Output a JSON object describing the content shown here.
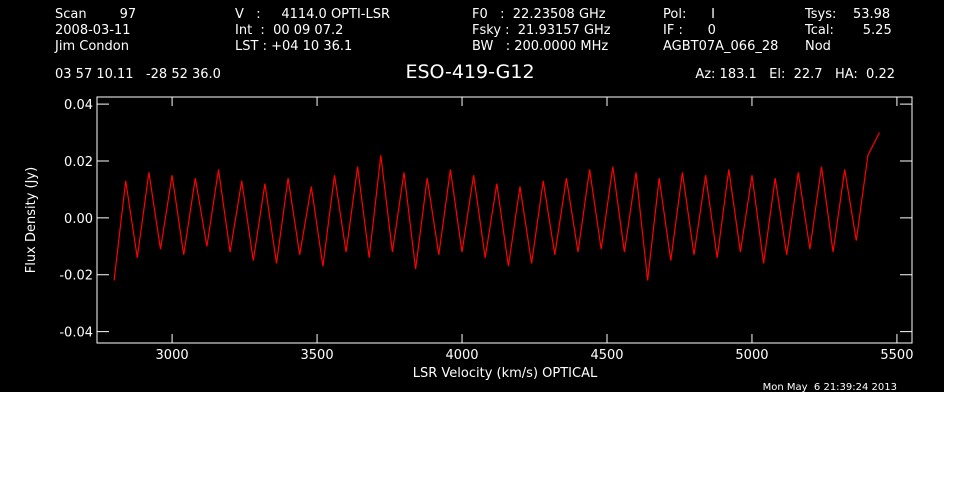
{
  "chart_data": {
    "type": "line",
    "title": "ESO-419-G12",
    "header": [
      [
        "Scan        97",
        "V   :     4114.0 OPTI-LSR",
        "F0   :  22.23508 GHz",
        "Pol:      I",
        "Tsys:    53.98"
      ],
      [
        "2008-03-11",
        "Int  :  00 09 07.2",
        "Fsky :  21.93157 GHz",
        "IF :      0",
        "Tcal:       5.25"
      ],
      [
        "Jim Condon",
        "LST : +04 10 36.1",
        "BW   : 200.0000 MHz",
        "AGBT07A_066_28",
        "Nod"
      ]
    ],
    "position": "03 57 10.11   -28 52 36.0",
    "pointing": "Az: 183.1   El:  22.7   HA:  0.22",
    "timestamp": "Mon May  6 21:39:24 2013",
    "xlabel": "LSR Velocity (km/s) OPTICAL",
    "ylabel": "Flux Density (Jy)",
    "x": [
      2800,
      2840,
      2880,
      2920,
      2960,
      3000,
      3040,
      3080,
      3120,
      3160,
      3200,
      3240,
      3280,
      3320,
      3360,
      3400,
      3440,
      3480,
      3520,
      3560,
      3600,
      3640,
      3680,
      3720,
      3760,
      3800,
      3840,
      3880,
      3920,
      3960,
      4000,
      4040,
      4080,
      4120,
      4160,
      4200,
      4240,
      4280,
      4320,
      4360,
      4400,
      4440,
      4480,
      4520,
      4560,
      4600,
      4640,
      4680,
      4720,
      4760,
      4800,
      4840,
      4880,
      4920,
      4960,
      5000,
      5040,
      5080,
      5120,
      5160,
      5200,
      5240,
      5280,
      5320,
      5360,
      5400,
      5440
    ],
    "series": [
      {
        "color": "#ff0000",
        "values": [
          -0.022,
          0.013,
          -0.014,
          0.016,
          -0.011,
          0.015,
          -0.013,
          0.014,
          -0.01,
          0.017,
          -0.012,
          0.013,
          -0.015,
          0.012,
          -0.016,
          0.014,
          -0.013,
          0.011,
          -0.017,
          0.015,
          -0.012,
          0.018,
          -0.014,
          0.022,
          -0.012,
          0.016,
          -0.018,
          0.014,
          -0.013,
          0.017,
          -0.012,
          0.015,
          -0.014,
          0.012,
          -0.017,
          0.011,
          -0.016,
          0.013,
          -0.013,
          0.014,
          -0.012,
          0.017,
          -0.011,
          0.018,
          -0.012,
          0.016,
          -0.022,
          0.014,
          -0.015,
          0.016,
          -0.013,
          0.015,
          -0.014,
          0.017,
          -0.012,
          0.015,
          -0.016,
          0.014,
          -0.013,
          0.016,
          -0.011,
          0.018,
          -0.012,
          0.017,
          -0.008,
          0.022,
          0.03
        ]
      }
    ],
    "xlim": [
      2741,
      5552
    ],
    "xticks": [
      3000,
      3500,
      4000,
      4500,
      5000,
      5500
    ],
    "ylim": [
      -0.044,
      0.0425
    ],
    "yticks": [
      {
        "value": -0.04,
        "label": "-0.04"
      },
      {
        "value": -0.02,
        "label": "-0.02"
      },
      {
        "value": 0,
        "label": "0.00"
      },
      {
        "value": 0.02,
        "label": "0.02"
      },
      {
        "value": 0.04,
        "label": "0.04"
      }
    ]
  }
}
